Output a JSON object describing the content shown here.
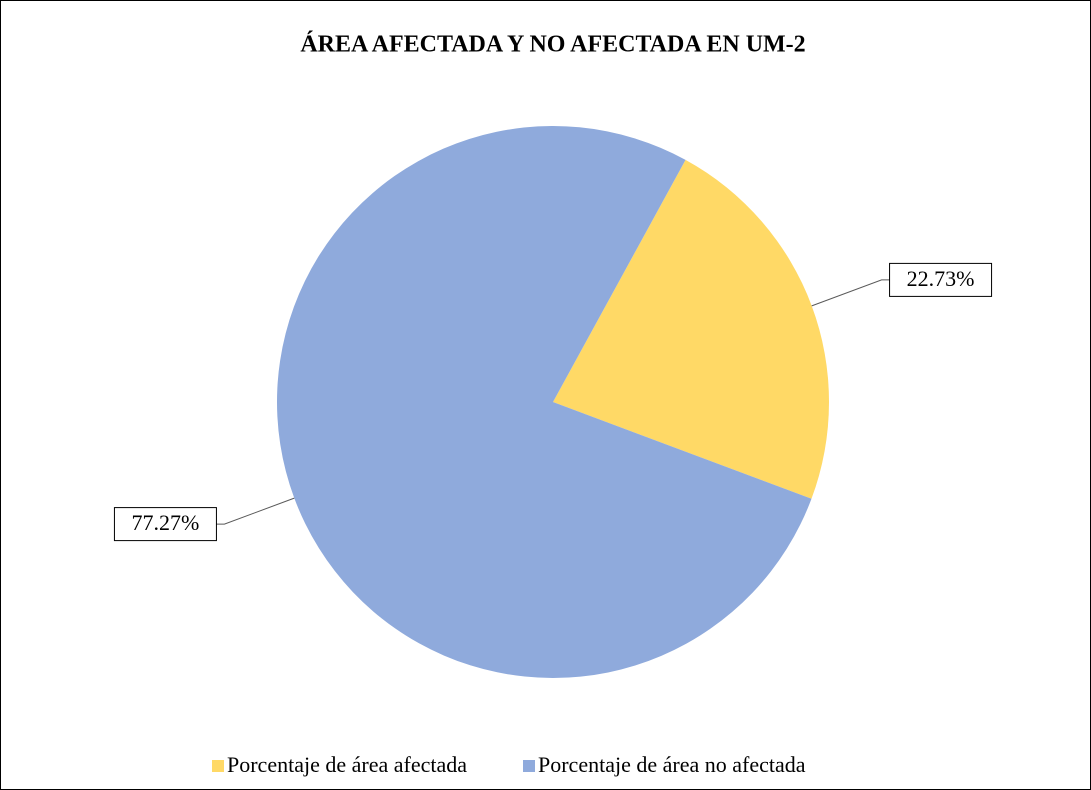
{
  "chart_data": {
    "type": "pie",
    "title": "ÁREA AFECTADA Y NO AFECTADA EN UM-2",
    "categories": [
      "Porcentaje de área afectada",
      "Porcentaje de área no afectada"
    ],
    "values": [
      22.73,
      77.27
    ],
    "value_labels": [
      "22.73%",
      "77.27%"
    ],
    "colors": [
      "#FFD966",
      "#8FAADC"
    ],
    "legend": "bottom"
  }
}
